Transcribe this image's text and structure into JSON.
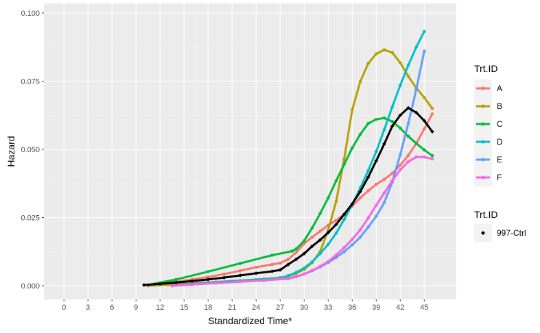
{
  "chart_data": {
    "type": "line",
    "xlabel": "Standardized Time*",
    "ylabel": "Hazard",
    "xlim": [
      -2.5,
      49
    ],
    "ylim": [
      -0.005,
      0.1035
    ],
    "xticks": [
      0,
      3,
      6,
      9,
      12,
      15,
      18,
      21,
      24,
      27,
      30,
      33,
      36,
      39,
      42,
      45
    ],
    "xtick_labels": [
      "0",
      "3",
      "6",
      "9",
      "12",
      "15",
      "18",
      "21",
      "24",
      "27",
      "30",
      "33",
      "36",
      "39",
      "42",
      "45"
    ],
    "yticks": [
      0.0,
      0.025,
      0.05,
      0.075,
      0.1
    ],
    "ytick_labels": [
      "0.000",
      "0.025",
      "0.050",
      "0.075",
      "0.100"
    ],
    "grid": true,
    "legend": [
      {
        "title": "Trt.ID",
        "entries": [
          "A",
          "B",
          "C",
          "D",
          "E",
          "F"
        ]
      },
      {
        "title": "Trt.ID",
        "entries": [
          "997-Ctrl"
        ]
      }
    ],
    "series": [
      {
        "name": "A",
        "color": "#F8766D",
        "x": [
          10.5,
          12,
          14,
          16,
          18,
          20,
          22,
          24,
          26,
          27,
          28,
          29,
          30,
          31,
          32,
          33,
          34,
          35,
          36,
          37,
          38,
          39,
          40,
          41,
          42,
          43,
          44,
          45,
          46
        ],
        "y": [
          0.0003,
          0.0008,
          0.0015,
          0.0023,
          0.0032,
          0.0043,
          0.0055,
          0.0068,
          0.0078,
          0.0083,
          0.0097,
          0.0122,
          0.0155,
          0.0178,
          0.02,
          0.0222,
          0.024,
          0.0262,
          0.0292,
          0.0322,
          0.0348,
          0.0372,
          0.039,
          0.0412,
          0.0442,
          0.0478,
          0.0522,
          0.0575,
          0.063
        ]
      },
      {
        "name": "B",
        "color": "#B79F00",
        "x": [
          10.5,
          13,
          16,
          19,
          22,
          25,
          27,
          28,
          29,
          30,
          31,
          32,
          33,
          34,
          35,
          36,
          37,
          38,
          39,
          40,
          41,
          42,
          43,
          44,
          45,
          46
        ],
        "y": [
          0.0,
          0.0004,
          0.0009,
          0.0014,
          0.0019,
          0.0025,
          0.003,
          0.0035,
          0.0045,
          0.006,
          0.0085,
          0.0125,
          0.0205,
          0.031,
          0.0465,
          0.0645,
          0.0748,
          0.0815,
          0.085,
          0.0865,
          0.0855,
          0.0818,
          0.0768,
          0.0725,
          0.069,
          0.065
        ]
      },
      {
        "name": "C",
        "color": "#00BA38",
        "x": [
          10.5,
          14,
          18,
          22,
          26,
          28.5,
          29,
          30,
          31,
          32,
          33,
          34,
          35,
          36,
          37,
          38,
          39,
          40,
          41,
          42,
          43,
          44,
          45,
          46
        ],
        "y": [
          0.0003,
          0.0023,
          0.0052,
          0.0082,
          0.0112,
          0.0127,
          0.0135,
          0.0165,
          0.0212,
          0.0265,
          0.0322,
          0.0385,
          0.0445,
          0.0505,
          0.0555,
          0.0595,
          0.061,
          0.0615,
          0.0602,
          0.0578,
          0.0548,
          0.0522,
          0.0498,
          0.0477
        ]
      },
      {
        "name": "D",
        "color": "#00BFC4",
        "x": [
          13.5,
          15,
          18,
          21,
          24,
          27,
          28,
          29,
          30,
          31,
          32,
          33,
          34,
          35,
          36,
          37,
          38,
          39,
          40,
          41,
          42,
          43,
          44,
          45
        ],
        "y": [
          0.0,
          0.0005,
          0.0011,
          0.0017,
          0.0022,
          0.0028,
          0.0037,
          0.0049,
          0.0065,
          0.0088,
          0.0118,
          0.0152,
          0.0193,
          0.0243,
          0.0298,
          0.0358,
          0.0422,
          0.0492,
          0.0572,
          0.0655,
          0.0735,
          0.0808,
          0.0875,
          0.0932
        ]
      },
      {
        "name": "E",
        "color": "#619CFF",
        "x": [
          13.5,
          16,
          19,
          22,
          25,
          28,
          29,
          30,
          31,
          32,
          33,
          34,
          35,
          36,
          37,
          38,
          39,
          40,
          41,
          42,
          43,
          44,
          45
        ],
        "y": [
          0.0,
          0.0005,
          0.001,
          0.0015,
          0.002,
          0.0026,
          0.0033,
          0.0043,
          0.0055,
          0.0069,
          0.0085,
          0.0104,
          0.0125,
          0.015,
          0.0178,
          0.0215,
          0.0255,
          0.0305,
          0.038,
          0.048,
          0.0595,
          0.072,
          0.086
        ]
      },
      {
        "name": "F",
        "color": "#F564E3",
        "x": [
          13.5,
          16,
          19,
          22,
          25,
          28,
          29,
          30,
          31,
          32,
          33,
          34,
          35,
          36,
          37,
          38,
          39,
          40,
          41,
          42,
          43,
          44,
          45,
          46
        ],
        "y": [
          0.0,
          0.0005,
          0.001,
          0.0015,
          0.002,
          0.0027,
          0.0034,
          0.0043,
          0.0056,
          0.0071,
          0.0089,
          0.0113,
          0.014,
          0.017,
          0.0205,
          0.0248,
          0.0295,
          0.034,
          0.0385,
          0.0425,
          0.0455,
          0.0472,
          0.0472,
          0.0465
        ]
      },
      {
        "name": "997-Ctrl",
        "color": "#000000",
        "x": [
          10,
          12,
          14,
          16,
          18,
          20,
          22,
          24,
          26,
          27,
          28,
          29,
          30,
          31,
          32,
          33,
          34,
          35,
          36,
          37,
          38,
          39,
          40,
          41,
          42,
          43,
          44,
          45,
          46
        ],
        "y": [
          0.0003,
          0.0007,
          0.0012,
          0.0017,
          0.0023,
          0.003,
          0.0038,
          0.0046,
          0.0053,
          0.0058,
          0.0078,
          0.0097,
          0.0118,
          0.0145,
          0.0168,
          0.0195,
          0.0225,
          0.0262,
          0.03,
          0.0345,
          0.0398,
          0.0458,
          0.052,
          0.0585,
          0.0625,
          0.0652,
          0.0635,
          0.0605,
          0.0565
        ]
      }
    ]
  }
}
